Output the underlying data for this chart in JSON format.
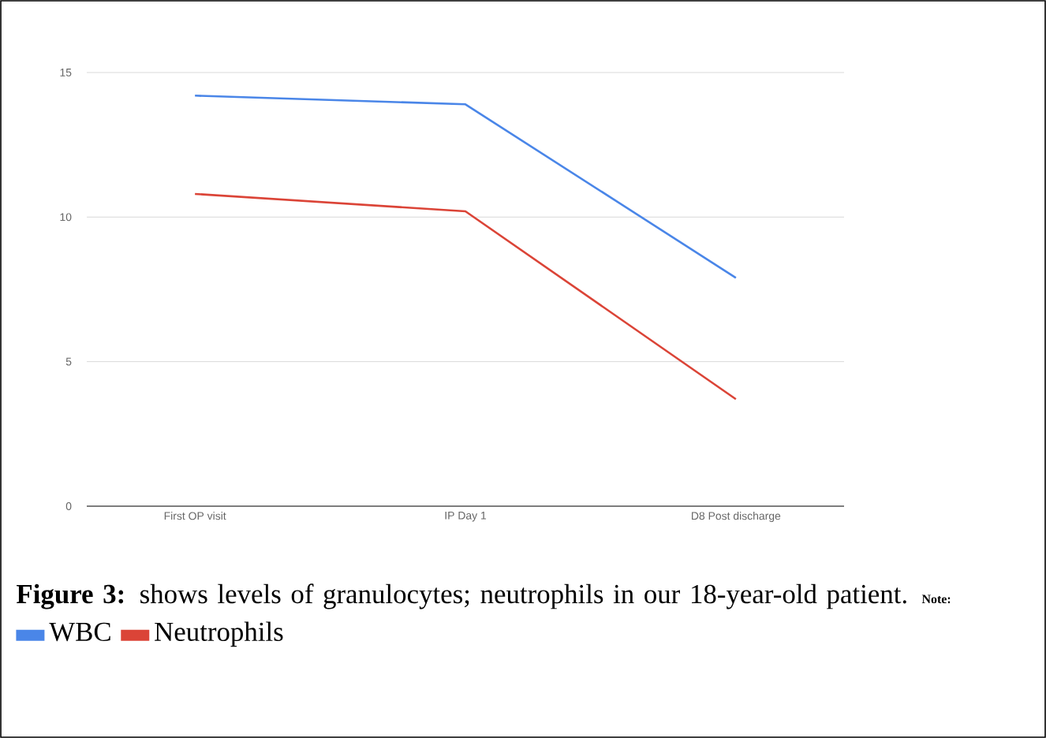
{
  "chart_data": {
    "type": "line",
    "categories": [
      "First OP visit",
      "IP Day 1",
      "D8 Post discharge"
    ],
    "series": [
      {
        "name": "WBC",
        "color": "#4a86e8",
        "values": [
          14.2,
          13.9,
          7.9
        ]
      },
      {
        "name": "Neutrophils",
        "color": "#db4437",
        "values": [
          10.8,
          10.2,
          3.7
        ]
      }
    ],
    "ylim": [
      0,
      15
    ],
    "yticks": [
      0,
      5,
      10,
      15
    ],
    "grid": "y",
    "legend": "bottom",
    "legend_title": "Note:",
    "marker": "none",
    "line_style": "solid",
    "annotations": [
      "**Figure 3:** shows levels of granulocytes; neutrophils in our 18-year-old patient."
    ]
  }
}
